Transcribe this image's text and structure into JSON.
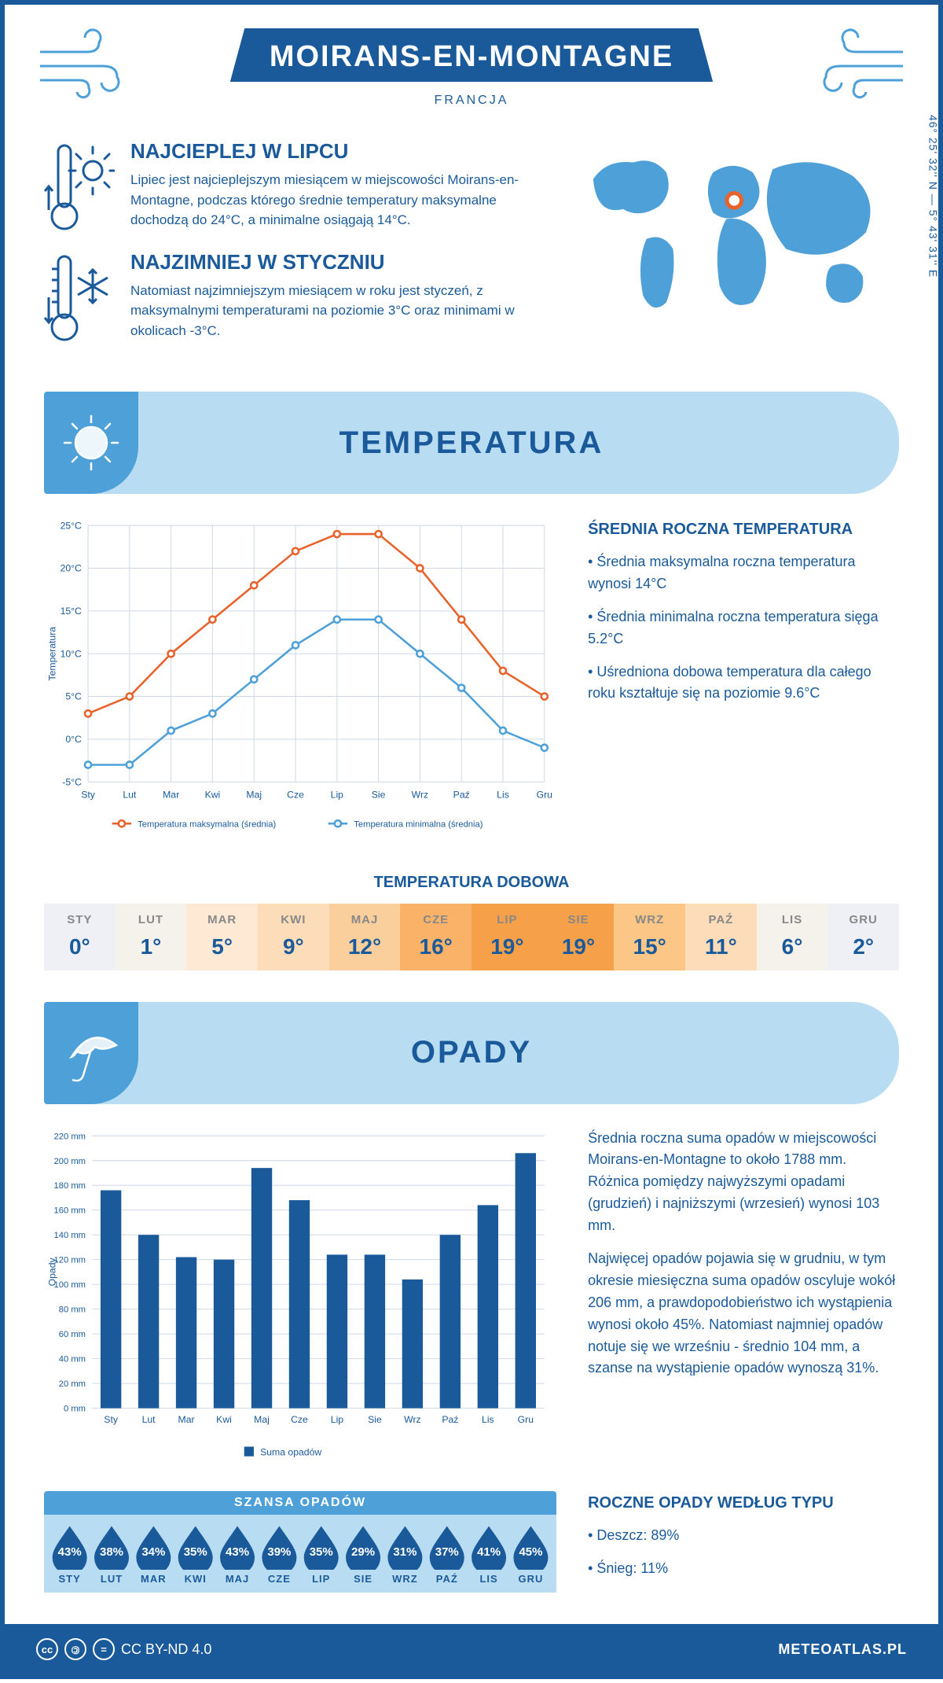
{
  "header": {
    "title": "MOIRANS-EN-MONTAGNE",
    "subtitle": "FRANCJA",
    "coords": "46° 25' 32'' N — 5° 43' 31'' E"
  },
  "facts": {
    "warm": {
      "title": "NAJCIEPLEJ W LIPCU",
      "text": "Lipiec jest najcieplejszym miesiącem w miejscowości Moirans-en-Montagne, podczas którego średnie temperatury maksymalne dochodzą do 24°C, a minimalne osiągają 14°C."
    },
    "cold": {
      "title": "NAJZIMNIEJ W STYCZNIU",
      "text": "Natomiast najzimniejszym miesiącem w roku jest styczeń, z maksymalnymi temperaturami na poziomie 3°C oraz minimami w okolicach -3°C."
    }
  },
  "months_short": [
    "Sty",
    "Lut",
    "Mar",
    "Kwi",
    "Maj",
    "Cze",
    "Lip",
    "Sie",
    "Wrz",
    "Paź",
    "Lis",
    "Gru"
  ],
  "months_upper": [
    "STY",
    "LUT",
    "MAR",
    "KWI",
    "MAJ",
    "CZE",
    "LIP",
    "SIE",
    "WRZ",
    "PAŹ",
    "LIS",
    "GRU"
  ],
  "temperature": {
    "section_title": "TEMPERATURA",
    "chart": {
      "type": "line",
      "ylabel": "Temperatura",
      "ylim": [
        -5,
        25
      ],
      "ytick_step": 5,
      "grid_color": "#cfd9e6",
      "background_color": "#ffffff",
      "series": [
        {
          "name": "Temperatura maksymalna (średnia)",
          "color": "#e8622c",
          "values": [
            3,
            5,
            10,
            14,
            18,
            22,
            24,
            24,
            20,
            14,
            8,
            5
          ]
        },
        {
          "name": "Temperatura minimalna (średnia)",
          "color": "#4da0d8",
          "values": [
            -3,
            -3,
            1,
            3,
            7,
            11,
            14,
            14,
            10,
            6,
            1,
            -1
          ]
        }
      ]
    },
    "side": {
      "title": "ŚREDNIA ROCZNA TEMPERATURA",
      "bullets": [
        "• Średnia maksymalna roczna temperatura wynosi 14°C",
        "• Średnia minimalna roczna temperatura sięga 5.2°C",
        "• Uśredniona dobowa temperatura dla całego roku kształtuje się na poziomie 9.6°C"
      ]
    },
    "daily": {
      "title": "TEMPERATURA DOBOWA",
      "values": [
        "0°",
        "1°",
        "5°",
        "9°",
        "12°",
        "16°",
        "19°",
        "19°",
        "15°",
        "11°",
        "6°",
        "2°"
      ],
      "bg_colors": [
        "#eef0f6",
        "#f5f1eb",
        "#fde9d4",
        "#fddcb9",
        "#fbcf9c",
        "#f9b268",
        "#f7a04a",
        "#f7a04a",
        "#fbc686",
        "#fddcb9",
        "#f5f1eb",
        "#eef0f6"
      ]
    }
  },
  "precip": {
    "section_title": "OPADY",
    "chart": {
      "type": "bar",
      "ylabel": "Opady",
      "ylim": [
        0,
        220
      ],
      "ytick_step": 20,
      "grid_color": "#cfd9e6",
      "bar_color": "#1a5a9a",
      "legend": "Suma opadów",
      "values": [
        176,
        140,
        122,
        120,
        194,
        168,
        124,
        124,
        104,
        140,
        164,
        206
      ]
    },
    "side_paragraphs": [
      "Średnia roczna suma opadów w miejscowości Moirans-en-Montagne to około 1788 mm. Różnica pomiędzy najwyższymi opadami (grudzień) i najniższymi (wrzesień) wynosi 103 mm.",
      "Najwięcej opadów pojawia się w grudniu, w tym okresie miesięczna suma opadów oscyluje wokół 206 mm, a prawdopodobieństwo ich wystąpienia wynosi około 45%. Natomiast najmniej opadów notuje się we wrześniu - średnio 104 mm, a szanse na wystąpienie opadów wynoszą 31%."
    ],
    "chance": {
      "title": "SZANSA OPADÓW",
      "values": [
        "43%",
        "38%",
        "34%",
        "35%",
        "43%",
        "39%",
        "35%",
        "29%",
        "31%",
        "37%",
        "41%",
        "45%"
      ],
      "drop_color": "#1a5a9a"
    },
    "by_type": {
      "title": "ROCZNE OPADY WEDŁUG TYPU",
      "bullets": [
        "• Deszcz: 89%",
        "• Śnieg: 11%"
      ]
    }
  },
  "footer": {
    "license": "CC BY-ND 4.0",
    "site": "METEOATLAS.PL"
  },
  "colors": {
    "primary": "#1a5a9a",
    "secondary": "#4da0d8",
    "light": "#b8ddf2"
  }
}
